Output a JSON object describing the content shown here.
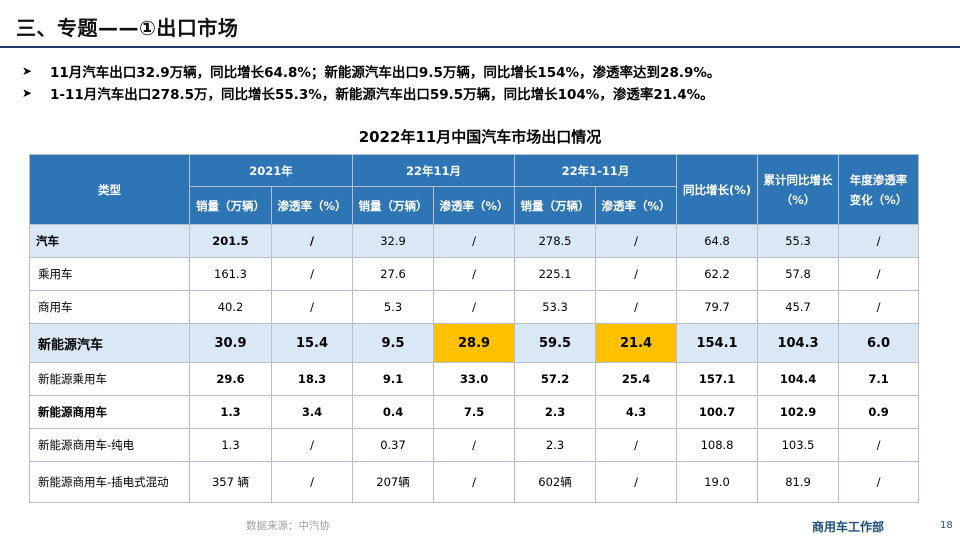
{
  "header": {
    "title": "三、专题——①出口市场"
  },
  "bullets": [
    {
      "icon": "arrow-bullet-icon",
      "text": "11月汽车出口32.9万辆，同比增长64.8%；新能源汽车出口9.5万辆，同比增长154%，渗透率达到28.9%。"
    },
    {
      "icon": "arrow-bullet-icon",
      "text": "1-11月汽车出口278.5万，同比增长55.3%，新能源汽车出口59.5万辆，同比增长104%，渗透率21.4%。"
    }
  ],
  "table": {
    "title": "2022年11月中国汽车市场出口情况",
    "headers": {
      "type": "类型",
      "g2021": "2021年",
      "g2211": "22年11月",
      "g221_11": "22年1-11月",
      "yoy": "同比增长(%)",
      "cum_yoy": "累计同比增长（%）",
      "pen_change": "年度渗透率变化（%）",
      "sales": "销量（万辆）",
      "pen": "渗透率（%）"
    },
    "rows": [
      {
        "label": "汽车",
        "cells": [
          "201.5",
          "/",
          "32.9",
          "/",
          "278.5",
          "/",
          "64.8",
          "55.3",
          "/"
        ]
      },
      {
        "label": "乘用车",
        "cells": [
          "161.3",
          "/",
          "27.6",
          "/",
          "225.1",
          "/",
          "62.2",
          "57.8",
          "/"
        ]
      },
      {
        "label": "商用车",
        "cells": [
          "40.2",
          "/",
          "5.3",
          "/",
          "53.3",
          "/",
          "79.7",
          "45.7",
          "/"
        ]
      },
      {
        "label": "新能源汽车",
        "cells": [
          "30.9",
          "15.4",
          "9.5",
          "28.9",
          "59.5",
          "21.4",
          "154.1",
          "104.3",
          "6.0"
        ]
      },
      {
        "label": "新能源乘用车",
        "cells": [
          "29.6",
          "18.3",
          "9.1",
          "33.0",
          "57.2",
          "25.4",
          "157.1",
          "104.4",
          "7.1"
        ]
      },
      {
        "label": "新能源商用车",
        "cells": [
          "1.3",
          "3.4",
          "0.4",
          "7.5",
          "2.3",
          "4.3",
          "100.7",
          "102.9",
          "0.9"
        ]
      },
      {
        "label": "新能源商用车-纯电",
        "cells": [
          "1.3",
          "/",
          "0.37",
          "/",
          "2.3",
          "/",
          "108.8",
          "103.5",
          "/"
        ]
      },
      {
        "label": "新能源商用车-插电式混动",
        "cells": [
          "357 辆",
          "/",
          "207辆",
          "/",
          "602辆",
          "/",
          "19.0",
          "81.9",
          "/"
        ]
      }
    ]
  },
  "footer": {
    "source": "数据来源：中汽协",
    "dept": "商用车工作部",
    "page": "18"
  },
  "colors": {
    "header_bg": "#2e75b6",
    "highlight_row": "#dae7f4",
    "highlight_cell": "#ffc000",
    "title_rule": "#1f3b63"
  }
}
